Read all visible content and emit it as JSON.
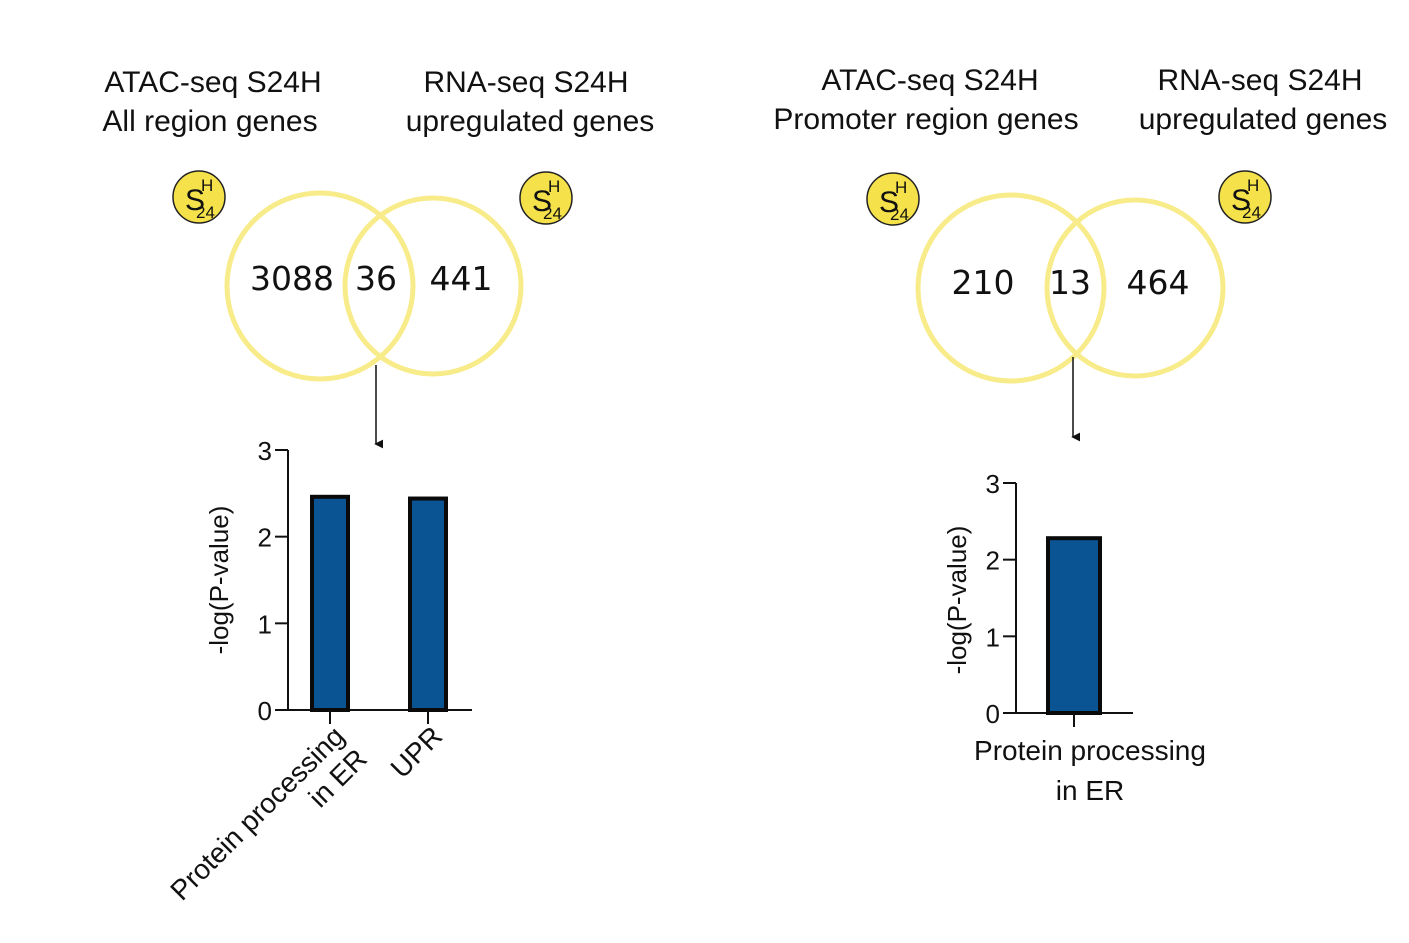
{
  "badge": {
    "letter": "S",
    "sup": "H",
    "sub": "24",
    "color": "#F5E24A"
  },
  "venn_color": "#F8EB8A",
  "bar_color": "#0A5493",
  "panels": [
    {
      "left_header": [
        "ATAC-seq S24H",
        "All region genes"
      ],
      "right_header": [
        "RNA-seq S24H",
        "upregulated genes"
      ],
      "venn": {
        "left_only": "3088",
        "overlap": "36",
        "right_only": "441"
      }
    },
    {
      "left_header": [
        "ATAC-seq S24H",
        "Promoter region genes"
      ],
      "right_header": [
        "RNA-seq S24H",
        "upregulated genes"
      ],
      "venn": {
        "left_only": "210",
        "overlap": "13",
        "right_only": "464"
      }
    }
  ],
  "chart_data": [
    {
      "type": "bar",
      "categories": [
        "Protein processing in ER",
        "UPR"
      ],
      "category_lines": [
        [
          "Protein processing",
          "in ER"
        ],
        [
          "UPR"
        ]
      ],
      "values": [
        2.46,
        2.44
      ],
      "ylabel": "-log(P-value)",
      "xlabel": "",
      "ylim": [
        0,
        3
      ],
      "yticks": [
        0,
        1,
        2,
        3
      ],
      "tick_label_rotation": -45,
      "grid": false
    },
    {
      "type": "bar",
      "categories": [
        "Protein processing in ER"
      ],
      "category_lines": [
        [
          "Protein processing",
          "in ER"
        ]
      ],
      "values": [
        2.28
      ],
      "ylabel": "-log(P-value)",
      "xlabel": "",
      "ylim": [
        0,
        3
      ],
      "yticks": [
        0,
        1,
        2,
        3
      ],
      "tick_label_rotation": 0,
      "grid": false
    }
  ]
}
